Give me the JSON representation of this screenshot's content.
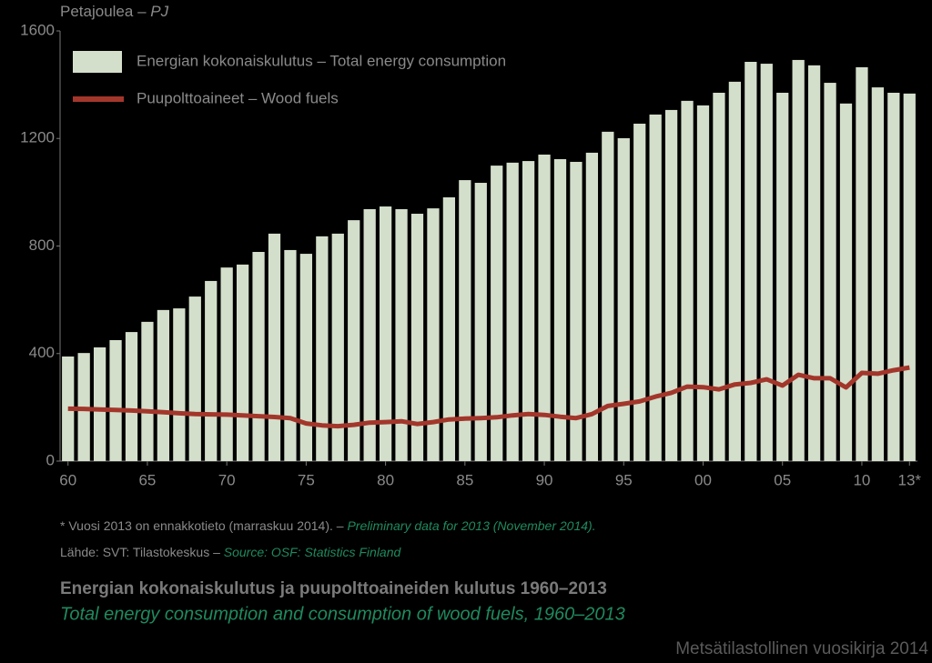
{
  "chart_data": {
    "type": "bar",
    "y_label": {
      "fi": "Petajoulea –",
      "en": "PJ"
    },
    "categories": [
      "60",
      null,
      null,
      null,
      null,
      "65",
      null,
      null,
      null,
      null,
      "70",
      null,
      null,
      null,
      null,
      "75",
      null,
      null,
      null,
      null,
      "80",
      null,
      null,
      null,
      null,
      "85",
      null,
      null,
      null,
      null,
      "90",
      null,
      null,
      null,
      null,
      "95",
      null,
      null,
      null,
      null,
      "00",
      null,
      null,
      null,
      null,
      "05",
      null,
      null,
      null,
      null,
      "10",
      null,
      null,
      "13*"
    ],
    "series": [
      {
        "name": "Energian kokonaiskulutus – Total energy consumption",
        "type": "bar",
        "color": "#d3dfcb",
        "values": [
          389,
          402,
          423,
          450,
          480,
          518,
          562,
          568,
          612,
          670,
          720,
          731,
          778,
          846,
          785,
          771,
          836,
          846,
          896,
          937,
          947,
          937,
          920,
          940,
          981,
          1045,
          1035,
          1099,
          1110,
          1116,
          1140,
          1123,
          1113,
          1147,
          1225,
          1201,
          1255,
          1289,
          1306,
          1340,
          1323,
          1370,
          1411,
          1485,
          1478,
          1370,
          1492,
          1472,
          1407,
          1330,
          1465,
          1390,
          1370,
          1367
        ]
      },
      {
        "name": "Puupolttoaineet – Wood fuels",
        "type": "line",
        "color": "#a3362b",
        "values": [
          195,
          194,
          192,
          190,
          188,
          185,
          182,
          178,
          175,
          174,
          173,
          170,
          167,
          164,
          160,
          140,
          133,
          130,
          135,
          143,
          145,
          148,
          138,
          145,
          155,
          158,
          160,
          163,
          170,
          175,
          172,
          165,
          160,
          175,
          205,
          213,
          222,
          240,
          254,
          277,
          275,
          267,
          285,
          291,
          304,
          281,
          321,
          308,
          308,
          274,
          328,
          325,
          338,
          348
        ]
      }
    ],
    "ylim": [
      0,
      1600
    ],
    "yticks": [
      0,
      400,
      800,
      1200,
      1600
    ],
    "notes": [
      {
        "fi": "*    Vuosi 2013 on ennakkotieto (marraskuu 2014). –",
        "en": "Preliminary data for 2013 (November 2014)."
      },
      {
        "fi": "Lähde: SVT: Tilastokeskus –",
        "en": "Source: OSF: Statistics Finland"
      }
    ],
    "title": "Energian kokonaiskulutus ja puupolttoaineiden kulutus 1960–2013",
    "subtitle": "Total energy consumption and consumption of wood fuels, 1960–2013",
    "source_brand": "Metsätilastollinen vuosikirja 2014"
  }
}
